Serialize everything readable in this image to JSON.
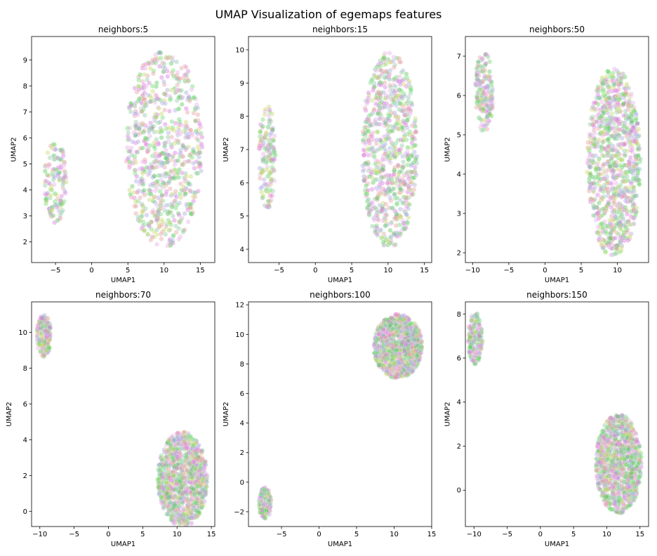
{
  "figure": {
    "title": "UMAP Visualization of egemaps features"
  },
  "chart_data": [
    {
      "type": "scatter",
      "title": "neighbors:5",
      "xlabel": "UMAP1",
      "ylabel": "UMAP2",
      "xlim": [
        -8.3,
        17.0
      ],
      "ylim": [
        1.2,
        9.9
      ],
      "xticks": [
        -5,
        0,
        5,
        10,
        15
      ],
      "yticks": [
        2,
        3,
        4,
        5,
        6,
        7,
        8,
        9
      ],
      "clusters": [
        {
          "cx": -5.0,
          "cy": 4.3,
          "rx": 1.6,
          "ry": 1.65,
          "n": 130
        },
        {
          "cx": 10.0,
          "cy": 5.6,
          "rx": 5.4,
          "ry": 3.9,
          "n": 720
        }
      ]
    },
    {
      "type": "scatter",
      "title": "neighbors:15",
      "xlabel": "UMAP1",
      "ylabel": "UMAP2",
      "xlim": [
        -9.2,
        16.0
      ],
      "ylim": [
        3.6,
        10.4
      ],
      "xticks": [
        -5,
        0,
        5,
        10,
        15
      ],
      "yticks": [
        4,
        5,
        6,
        7,
        8,
        9,
        10
      ],
      "clusters": [
        {
          "cx": -6.6,
          "cy": 6.8,
          "rx": 1.2,
          "ry": 1.6,
          "n": 150
        },
        {
          "cx": 10.2,
          "cy": 7.0,
          "rx": 3.9,
          "ry": 3.0,
          "n": 720
        }
      ]
    },
    {
      "type": "scatter",
      "title": "neighbors:50",
      "xlabel": "UMAP1",
      "ylabel": "UMAP2",
      "xlim": [
        -11.0,
        14.3
      ],
      "ylim": [
        1.75,
        7.5
      ],
      "xticks": [
        -10,
        -5,
        0,
        5,
        10
      ],
      "yticks": [
        2,
        3,
        4,
        5,
        6,
        7
      ],
      "clusters": [
        {
          "cx": -8.4,
          "cy": 6.1,
          "rx": 1.3,
          "ry": 1.05,
          "n": 170
        },
        {
          "cx": 9.5,
          "cy": 4.3,
          "rx": 3.8,
          "ry": 2.45,
          "n": 900
        }
      ]
    },
    {
      "type": "scatter",
      "title": "neighbors:70",
      "xlabel": "UMAP1",
      "ylabel": "UMAP2",
      "xlim": [
        -11.2,
        15.5
      ],
      "ylim": [
        -0.85,
        11.7
      ],
      "xticks": [
        -10,
        -5,
        0,
        5,
        10,
        15
      ],
      "yticks": [
        0,
        2,
        4,
        6,
        8,
        10
      ],
      "clusters": [
        {
          "cx": -9.4,
          "cy": 9.8,
          "rx": 1.1,
          "ry": 1.2,
          "n": 170
        },
        {
          "cx": 10.8,
          "cy": 1.8,
          "rx": 3.7,
          "ry": 2.7,
          "n": 1000
        }
      ]
    },
    {
      "type": "scatter",
      "title": "neighbors:100",
      "xlabel": "UMAP1",
      "ylabel": "UMAP2",
      "xlim": [
        -9.4,
        15.0
      ],
      "ylim": [
        -3.0,
        12.2
      ],
      "xticks": [
        -5,
        0,
        5,
        10,
        15
      ],
      "yticks": [
        -2,
        0,
        2,
        4,
        6,
        8,
        10,
        12
      ],
      "clusters": [
        {
          "cx": -7.2,
          "cy": -1.4,
          "rx": 0.85,
          "ry": 1.1,
          "n": 130
        },
        {
          "cx": 10.5,
          "cy": 9.2,
          "rx": 3.3,
          "ry": 2.2,
          "n": 1000
        }
      ]
    },
    {
      "type": "scatter",
      "title": "neighbors:150",
      "xlabel": "UMAP1",
      "ylabel": "UMAP2",
      "xlim": [
        -11.3,
        16.3
      ],
      "ylim": [
        -1.65,
        8.55
      ],
      "xticks": [
        -10,
        -5,
        0,
        5,
        10,
        15
      ],
      "yticks": [
        0,
        2,
        4,
        6,
        8
      ],
      "clusters": [
        {
          "cx": -9.8,
          "cy": 6.9,
          "rx": 1.1,
          "ry": 1.2,
          "n": 170
        },
        {
          "cx": 11.8,
          "cy": 1.2,
          "rx": 3.5,
          "ry": 2.3,
          "n": 1000
        }
      ]
    }
  ],
  "colors": {
    "palette": [
      "#6fdc6f",
      "#d978e0",
      "#a9a9e0",
      "#e4a0a0",
      "#c8d86a",
      "#8fc8a8",
      "#e8b0e8",
      "#58c858"
    ]
  }
}
